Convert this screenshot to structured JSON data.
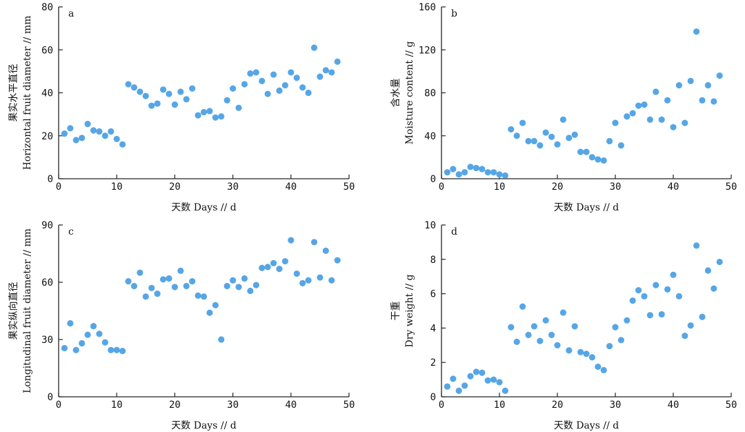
{
  "chart_data": [
    {
      "type": "scatter",
      "panel": "a",
      "ylabel_cn": "果实水平直径",
      "ylabel_en": "Horizontal fruit diameter // mm",
      "xlabel": "天数 Days // d",
      "xlim": [
        0,
        50
      ],
      "ylim": [
        0,
        80
      ],
      "xticks": [
        0,
        10,
        20,
        30,
        40,
        50
      ],
      "yticks": [
        0,
        20,
        40,
        60,
        80
      ],
      "points": [
        [
          1,
          21
        ],
        [
          2,
          23.5
        ],
        [
          3,
          18
        ],
        [
          4,
          19
        ],
        [
          5,
          25.5
        ],
        [
          6,
          22.5
        ],
        [
          7,
          22
        ],
        [
          8,
          20
        ],
        [
          9,
          22
        ],
        [
          10,
          18.5
        ],
        [
          11,
          16
        ],
        [
          12,
          44
        ],
        [
          13,
          42.5
        ],
        [
          14,
          40.5
        ],
        [
          15,
          38.5
        ],
        [
          16,
          34
        ],
        [
          17,
          35
        ],
        [
          18,
          41.5
        ],
        [
          19,
          39.5
        ],
        [
          20,
          34.5
        ],
        [
          21,
          40.5
        ],
        [
          22,
          37
        ],
        [
          23,
          42
        ],
        [
          24,
          29.5
        ],
        [
          25,
          31
        ],
        [
          26,
          31.5
        ],
        [
          27,
          28.5
        ],
        [
          28,
          29
        ],
        [
          29,
          36.5
        ],
        [
          30,
          42
        ],
        [
          31,
          33
        ],
        [
          32,
          44
        ],
        [
          33,
          49
        ],
        [
          34,
          49.5
        ],
        [
          35,
          45.5
        ],
        [
          36,
          39.5
        ],
        [
          37,
          48.5
        ],
        [
          38,
          41
        ],
        [
          39,
          43.5
        ],
        [
          40,
          49.5
        ],
        [
          41,
          47
        ],
        [
          42,
          42.5
        ],
        [
          43,
          40
        ],
        [
          44,
          61
        ],
        [
          45,
          47.5
        ],
        [
          46,
          50.5
        ],
        [
          47,
          49.5
        ],
        [
          48,
          54.5
        ]
      ]
    },
    {
      "type": "scatter",
      "panel": "b",
      "ylabel_cn": "含水量",
      "ylabel_en": "Moisture content // g",
      "xlabel": "天数 Days // d",
      "xlim": [
        0,
        50
      ],
      "ylim": [
        0,
        160
      ],
      "xticks": [
        0,
        10,
        20,
        30,
        40,
        50
      ],
      "yticks": [
        0,
        40,
        80,
        120,
        160
      ],
      "points": [
        [
          1,
          6
        ],
        [
          2,
          9
        ],
        [
          3,
          4
        ],
        [
          4,
          6
        ],
        [
          5,
          11
        ],
        [
          6,
          10
        ],
        [
          7,
          9
        ],
        [
          8,
          6
        ],
        [
          9,
          6
        ],
        [
          10,
          4
        ],
        [
          11,
          3
        ],
        [
          12,
          46
        ],
        [
          13,
          40
        ],
        [
          14,
          52
        ],
        [
          15,
          35
        ],
        [
          16,
          35
        ],
        [
          17,
          31
        ],
        [
          18,
          43
        ],
        [
          19,
          39
        ],
        [
          20,
          32
        ],
        [
          21,
          55
        ],
        [
          22,
          38
        ],
        [
          23,
          41
        ],
        [
          24,
          25
        ],
        [
          25,
          25
        ],
        [
          26,
          20
        ],
        [
          27,
          18
        ],
        [
          28,
          17
        ],
        [
          29,
          35
        ],
        [
          30,
          52
        ],
        [
          31,
          31
        ],
        [
          32,
          58
        ],
        [
          33,
          61
        ],
        [
          34,
          68
        ],
        [
          35,
          69
        ],
        [
          36,
          55
        ],
        [
          37,
          81
        ],
        [
          38,
          55
        ],
        [
          39,
          73
        ],
        [
          40,
          48
        ],
        [
          41,
          87
        ],
        [
          42,
          52
        ],
        [
          43,
          91
        ],
        [
          44,
          137
        ],
        [
          45,
          73
        ],
        [
          46,
          87
        ],
        [
          47,
          72
        ],
        [
          48,
          96
        ]
      ]
    },
    {
      "type": "scatter",
      "panel": "c",
      "ylabel_cn": "果实纵向直径",
      "ylabel_en": "Longitudinal fruit diameter // mm",
      "xlabel": "天数 Days // d",
      "xlim": [
        0,
        50
      ],
      "ylim": [
        0,
        90
      ],
      "xticks": [
        0,
        10,
        20,
        30,
        40,
        50
      ],
      "yticks": [
        0,
        30,
        60,
        90
      ],
      "points": [
        [
          1,
          25.5
        ],
        [
          2,
          38.5
        ],
        [
          3,
          24.5
        ],
        [
          4,
          28
        ],
        [
          5,
          32.5
        ],
        [
          6,
          37
        ],
        [
          7,
          33
        ],
        [
          8,
          28.5
        ],
        [
          9,
          24.5
        ],
        [
          10,
          24.5
        ],
        [
          11,
          24
        ],
        [
          12,
          60.5
        ],
        [
          13,
          58
        ],
        [
          14,
          65
        ],
        [
          15,
          52.5
        ],
        [
          16,
          57
        ],
        [
          17,
          54
        ],
        [
          18,
          61.5
        ],
        [
          19,
          62
        ],
        [
          20,
          57.5
        ],
        [
          21,
          66
        ],
        [
          22,
          58
        ],
        [
          23,
          60.5
        ],
        [
          24,
          53
        ],
        [
          25,
          52.5
        ],
        [
          26,
          44
        ],
        [
          27,
          48
        ],
        [
          28,
          30
        ],
        [
          29,
          58
        ],
        [
          30,
          61
        ],
        [
          31,
          57.5
        ],
        [
          32,
          62
        ],
        [
          33,
          55.5
        ],
        [
          34,
          58.5
        ],
        [
          35,
          67.5
        ],
        [
          36,
          68
        ],
        [
          37,
          70
        ],
        [
          38,
          67
        ],
        [
          39,
          71
        ],
        [
          40,
          82
        ],
        [
          41,
          64.5
        ],
        [
          42,
          59.5
        ],
        [
          43,
          61
        ],
        [
          44,
          81
        ],
        [
          45,
          62.5
        ],
        [
          46,
          76.5
        ],
        [
          47,
          61
        ],
        [
          48,
          71.5
        ]
      ]
    },
    {
      "type": "scatter",
      "panel": "d",
      "ylabel_cn": "干重",
      "ylabel_en": "Dry weight // g",
      "xlabel": "天数 Days // d",
      "xlim": [
        0,
        50
      ],
      "ylim": [
        0,
        10
      ],
      "xticks": [
        0,
        10,
        20,
        30,
        40,
        50
      ],
      "yticks": [
        0,
        2,
        4,
        6,
        8,
        10
      ],
      "points": [
        [
          1,
          0.6
        ],
        [
          2,
          1.05
        ],
        [
          3,
          0.35
        ],
        [
          4,
          0.65
        ],
        [
          5,
          1.2
        ],
        [
          6,
          1.45
        ],
        [
          7,
          1.4
        ],
        [
          8,
          0.95
        ],
        [
          9,
          1
        ],
        [
          10,
          0.85
        ],
        [
          11,
          0.35
        ],
        [
          12,
          4.05
        ],
        [
          13,
          3.2
        ],
        [
          14,
          5.25
        ],
        [
          15,
          3.6
        ],
        [
          16,
          4.1
        ],
        [
          17,
          3.25
        ],
        [
          18,
          4.45
        ],
        [
          19,
          3.6
        ],
        [
          20,
          3
        ],
        [
          21,
          4.9
        ],
        [
          22,
          2.7
        ],
        [
          23,
          4.1
        ],
        [
          24,
          2.6
        ],
        [
          25,
          2.5
        ],
        [
          26,
          2.3
        ],
        [
          27,
          1.75
        ],
        [
          28,
          1.55
        ],
        [
          29,
          2.95
        ],
        [
          30,
          4.05
        ],
        [
          31,
          3.3
        ],
        [
          32,
          4.45
        ],
        [
          33,
          5.6
        ],
        [
          34,
          6.2
        ],
        [
          35,
          5.85
        ],
        [
          36,
          4.75
        ],
        [
          37,
          6.5
        ],
        [
          38,
          4.8
        ],
        [
          39,
          6.25
        ],
        [
          40,
          7.1
        ],
        [
          41,
          5.85
        ],
        [
          42,
          3.55
        ],
        [
          43,
          4.15
        ],
        [
          44,
          8.8
        ],
        [
          45,
          4.65
        ],
        [
          46,
          7.35
        ],
        [
          47,
          6.3
        ],
        [
          48,
          7.85
        ]
      ]
    }
  ]
}
